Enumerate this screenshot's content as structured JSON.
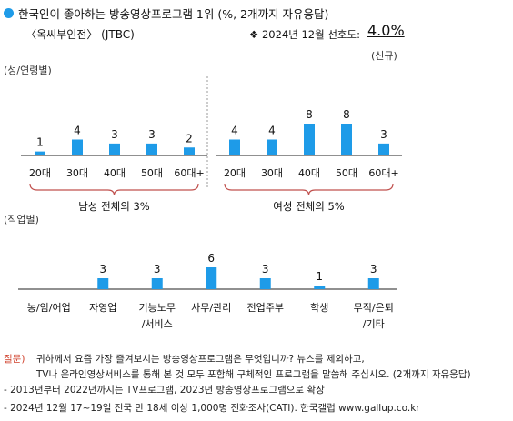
{
  "header": {
    "title": "한국인이 좋아하는 방송영상프로그램 1위 (%, 2개까지 자유응답)",
    "subtitle": "- 〈옥씨부인전〉 (JTBC)",
    "preference_label": "❖  2024년 12월 선호도:",
    "preference_value": "4.0%",
    "preference_note": "(신규)"
  },
  "colors": {
    "bar": "#1e9be8",
    "brace": "#c0504d",
    "accent_question": "#d0402b"
  },
  "chart_data": [
    {
      "type": "bar",
      "section_label": "(성/연령별)",
      "groups": [
        {
          "name": "남성 전체의 3%",
          "categories": [
            "20대",
            "30대",
            "40대",
            "50대",
            "60대+"
          ],
          "values": [
            1,
            4,
            3,
            3,
            2
          ]
        },
        {
          "name": "여성 전체의 5%",
          "categories": [
            "20대",
            "30대",
            "40대",
            "50대",
            "60대+"
          ],
          "values": [
            4,
            4,
            8,
            8,
            3
          ]
        }
      ],
      "ylim": [
        0,
        8
      ],
      "grid": false
    },
    {
      "type": "bar",
      "section_label": "(직업별)",
      "categories": [
        "농/임/어업",
        "자영업",
        "기능노무/서비스",
        "사무/관리",
        "전업주부",
        "학생",
        "무직/은퇴/기타"
      ],
      "category_lines": [
        [
          "농/임/어업"
        ],
        [
          "자영업"
        ],
        [
          "기능노무",
          "/서비스"
        ],
        [
          "사무/관리"
        ],
        [
          "전업주부"
        ],
        [
          "학생"
        ],
        [
          "무직/은퇴",
          "/기타"
        ]
      ],
      "values": [
        null,
        3,
        3,
        6,
        3,
        1,
        3
      ],
      "ylim": [
        0,
        6
      ],
      "grid": false
    }
  ],
  "footer": {
    "question_label": "질문)",
    "question_line1": "귀하께서 요즘 가장 즐겨보시는 방송영상프로그램은 무엇입니까? 뉴스를 제외하고,",
    "question_line2": "TV나 온라인영상서비스를 통해 본 것 모두 포함해 구체적인 프로그램을 말씀해 주십시오. (2개까지 자유응답)",
    "note1": "- 2013년부터 2022년까지는 TV프로그램, 2023년 방송영상프로그램으로 확장",
    "note2": "- 2024년 12월 17~19일 전국 만 18세 이상 1,000명 전화조사(CATI). 한국갤럽 www.gallup.co.kr"
  }
}
